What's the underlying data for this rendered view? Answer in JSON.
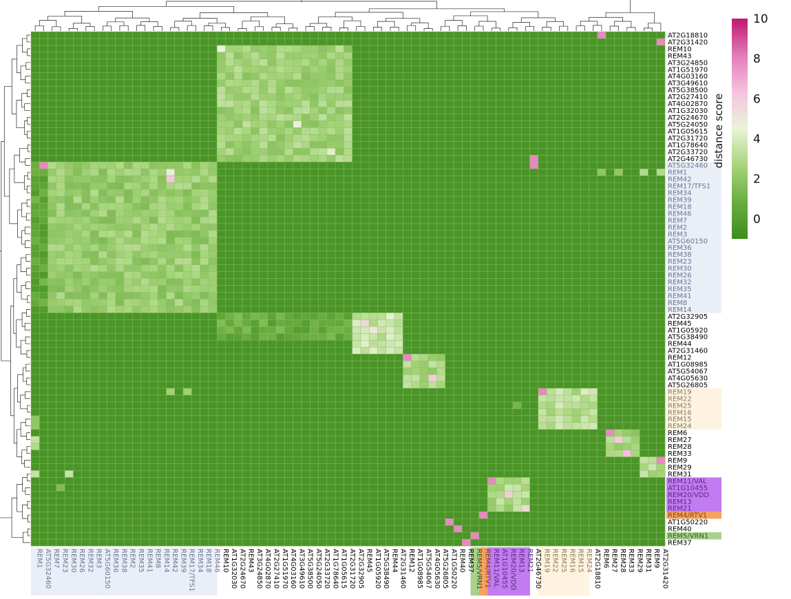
{
  "chart_data": {
    "type": "heatmap",
    "title": "",
    "colorbar": {
      "label": "distance score",
      "ticks": [
        0,
        2,
        4,
        6,
        8,
        10
      ],
      "colors": [
        "#3e8c1e",
        "#6aad3f",
        "#a6d47a",
        "#e9f4d8",
        "#f6c2de",
        "#e27bb7",
        "#c2176f"
      ],
      "range": [
        -1,
        10
      ]
    },
    "clusters": [
      {
        "name": "blue",
        "color": "#e9eef7"
      },
      {
        "name": "yellow",
        "color": "#fdf3e0"
      },
      {
        "name": "purple",
        "color": "#c27bf0"
      },
      {
        "name": "orange",
        "color": "#f4a261"
      },
      {
        "name": "green",
        "color": "#a9d08e"
      }
    ],
    "rows": [
      {
        "label": "AT2G18810",
        "color": "#000000"
      },
      {
        "label": "AT2G31420",
        "color": "#000000"
      },
      {
        "label": "REM10",
        "color": "#000000"
      },
      {
        "label": "REM43",
        "color": "#000000"
      },
      {
        "label": "AT3G24850",
        "color": "#000000"
      },
      {
        "label": "AT1G51970",
        "color": "#000000"
      },
      {
        "label": "AT4G03160",
        "color": "#000000"
      },
      {
        "label": "AT3G49610",
        "color": "#000000"
      },
      {
        "label": "AT5G38500",
        "color": "#000000"
      },
      {
        "label": "AT2G27410",
        "color": "#000000"
      },
      {
        "label": "AT4G02870",
        "color": "#000000"
      },
      {
        "label": "AT1G32030",
        "color": "#000000"
      },
      {
        "label": "AT2G24670",
        "color": "#000000"
      },
      {
        "label": "AT5G24050",
        "color": "#000000"
      },
      {
        "label": "AT1G05615",
        "color": "#000000"
      },
      {
        "label": "AT2G31720",
        "color": "#000000"
      },
      {
        "label": "AT1G78640",
        "color": "#000000"
      },
      {
        "label": "AT2G33720",
        "color": "#000000"
      },
      {
        "label": "AT2G46730",
        "color": "#000000"
      },
      {
        "label": "AT5G32460",
        "color": "#6b7690",
        "bg": "blue"
      },
      {
        "label": "REM1",
        "color": "#6b7690",
        "bg": "blue"
      },
      {
        "label": "REM42",
        "color": "#6b7690",
        "bg": "blue"
      },
      {
        "label": "REM17/TFS1",
        "color": "#6b7690",
        "bg": "blue"
      },
      {
        "label": "REM34",
        "color": "#6b7690",
        "bg": "blue"
      },
      {
        "label": "REM39",
        "color": "#6b7690",
        "bg": "blue"
      },
      {
        "label": "REM18",
        "color": "#6b7690",
        "bg": "blue"
      },
      {
        "label": "REM46",
        "color": "#6b7690",
        "bg": "blue"
      },
      {
        "label": "REM7",
        "color": "#6b7690",
        "bg": "blue"
      },
      {
        "label": "REM2",
        "color": "#6b7690",
        "bg": "blue"
      },
      {
        "label": "REM3",
        "color": "#6b7690",
        "bg": "blue"
      },
      {
        "label": "AT5G60150",
        "color": "#6b7690",
        "bg": "blue"
      },
      {
        "label": "REM36",
        "color": "#6b7690",
        "bg": "blue"
      },
      {
        "label": "REM38",
        "color": "#6b7690",
        "bg": "blue"
      },
      {
        "label": "REM23",
        "color": "#6b7690",
        "bg": "blue"
      },
      {
        "label": "REM30",
        "color": "#6b7690",
        "bg": "blue"
      },
      {
        "label": "REM26",
        "color": "#6b7690",
        "bg": "blue"
      },
      {
        "label": "REM32",
        "color": "#6b7690",
        "bg": "blue"
      },
      {
        "label": "REM35",
        "color": "#6b7690",
        "bg": "blue"
      },
      {
        "label": "REM41",
        "color": "#6b7690",
        "bg": "blue"
      },
      {
        "label": "REM8",
        "color": "#6b7690",
        "bg": "blue"
      },
      {
        "label": "REM14",
        "color": "#6b7690",
        "bg": "blue"
      },
      {
        "label": "AT2G32905",
        "color": "#000000"
      },
      {
        "label": "REM45",
        "color": "#000000"
      },
      {
        "label": "AT1G05920",
        "color": "#000000"
      },
      {
        "label": "AT5G38490",
        "color": "#000000"
      },
      {
        "label": "REM44",
        "color": "#000000"
      },
      {
        "label": "AT2G31460",
        "color": "#000000"
      },
      {
        "label": "REM12",
        "color": "#000000"
      },
      {
        "label": "AT1G08985",
        "color": "#000000"
      },
      {
        "label": "AT5G54067",
        "color": "#000000"
      },
      {
        "label": "AT4G05630",
        "color": "#000000"
      },
      {
        "label": "AT5G26805",
        "color": "#000000"
      },
      {
        "label": "REM19",
        "color": "#8a7a5a",
        "bg": "yellow"
      },
      {
        "label": "REM22",
        "color": "#8a7a5a",
        "bg": "yellow"
      },
      {
        "label": "REM25",
        "color": "#8a7a5a",
        "bg": "yellow"
      },
      {
        "label": "REM16",
        "color": "#8a7a5a",
        "bg": "yellow"
      },
      {
        "label": "REM15",
        "color": "#8a7a5a",
        "bg": "yellow"
      },
      {
        "label": "REM24",
        "color": "#8a7a5a",
        "bg": "yellow"
      },
      {
        "label": "REM6",
        "color": "#000000"
      },
      {
        "label": "REM27",
        "color": "#000000"
      },
      {
        "label": "REM28",
        "color": "#000000"
      },
      {
        "label": "REM33",
        "color": "#000000"
      },
      {
        "label": "REM9",
        "color": "#000000"
      },
      {
        "label": "REM29",
        "color": "#000000"
      },
      {
        "label": "REM31",
        "color": "#000000"
      },
      {
        "label": "REM11/VAL",
        "color": "#5b2b82",
        "bg": "purple"
      },
      {
        "label": "AT1G10455",
        "color": "#5b2b82",
        "bg": "purple"
      },
      {
        "label": "REM20/VDD",
        "color": "#5b2b82",
        "bg": "purple"
      },
      {
        "label": "REM13",
        "color": "#5b2b82",
        "bg": "purple"
      },
      {
        "label": "REM21",
        "color": "#5b2b82",
        "bg": "purple"
      },
      {
        "label": "REM4/RTV1",
        "color": "#8a3d10",
        "bg": "orange"
      },
      {
        "label": "AT1G50220",
        "color": "#000000"
      },
      {
        "label": "REM40",
        "color": "#000000"
      },
      {
        "label": "REM5/VRN1",
        "color": "#2e5e1e",
        "bg": "green"
      },
      {
        "label": "REM37",
        "color": "#000000"
      }
    ],
    "columns": [
      {
        "label": "REM1",
        "color": "#6b7690",
        "bg": "blue"
      },
      {
        "label": "AT5G32460",
        "color": "#6b7690",
        "bg": "blue"
      },
      {
        "label": "REM7",
        "color": "#6b7690",
        "bg": "blue"
      },
      {
        "label": "REM23",
        "color": "#6b7690",
        "bg": "blue"
      },
      {
        "label": "REM30",
        "color": "#6b7690",
        "bg": "blue"
      },
      {
        "label": "REM26",
        "color": "#6b7690",
        "bg": "blue"
      },
      {
        "label": "REM32",
        "color": "#6b7690",
        "bg": "blue"
      },
      {
        "label": "REM3",
        "color": "#6b7690",
        "bg": "blue"
      },
      {
        "label": "AT5G60150",
        "color": "#6b7690",
        "bg": "blue"
      },
      {
        "label": "REM36",
        "color": "#6b7690",
        "bg": "blue"
      },
      {
        "label": "REM38",
        "color": "#6b7690",
        "bg": "blue"
      },
      {
        "label": "REM2",
        "color": "#6b7690",
        "bg": "blue"
      },
      {
        "label": "REM35",
        "color": "#6b7690",
        "bg": "blue"
      },
      {
        "label": "REM41",
        "color": "#6b7690",
        "bg": "blue"
      },
      {
        "label": "REM8",
        "color": "#6b7690",
        "bg": "blue"
      },
      {
        "label": "REM14",
        "color": "#6b7690",
        "bg": "blue"
      },
      {
        "label": "REM42",
        "color": "#6b7690",
        "bg": "blue"
      },
      {
        "label": "REM39",
        "color": "#6b7690",
        "bg": "blue"
      },
      {
        "label": "REM17/TFS1",
        "color": "#6b7690",
        "bg": "blue"
      },
      {
        "label": "REM34",
        "color": "#6b7690",
        "bg": "blue"
      },
      {
        "label": "REM18",
        "color": "#6b7690",
        "bg": "blue"
      },
      {
        "label": "REM46",
        "color": "#6b7690",
        "bg": "blue"
      },
      {
        "label": "REM10",
        "color": "#000000"
      },
      {
        "label": "AT1G32030",
        "color": "#000000"
      },
      {
        "label": "AT2G24670",
        "color": "#000000"
      },
      {
        "label": "REM43",
        "color": "#000000"
      },
      {
        "label": "AT3G24850",
        "color": "#000000"
      },
      {
        "label": "AT4G02870",
        "color": "#000000"
      },
      {
        "label": "AT2G27410",
        "color": "#000000"
      },
      {
        "label": "AT1G51970",
        "color": "#000000"
      },
      {
        "label": "AT4G03160",
        "color": "#000000"
      },
      {
        "label": "AT3G49610",
        "color": "#000000"
      },
      {
        "label": "AT5G38500",
        "color": "#000000"
      },
      {
        "label": "AT5G24050",
        "color": "#000000"
      },
      {
        "label": "AT2G33720",
        "color": "#000000"
      },
      {
        "label": "AT1G78640",
        "color": "#000000"
      },
      {
        "label": "AT1G05615",
        "color": "#000000"
      },
      {
        "label": "AT2G31720",
        "color": "#000000"
      },
      {
        "label": "AT2G32905",
        "color": "#000000"
      },
      {
        "label": "REM45",
        "color": "#000000"
      },
      {
        "label": "AT1G05920",
        "color": "#000000"
      },
      {
        "label": "AT5G38490",
        "color": "#000000"
      },
      {
        "label": "REM44",
        "color": "#000000"
      },
      {
        "label": "AT2G31460",
        "color": "#000000"
      },
      {
        "label": "REM12",
        "color": "#000000"
      },
      {
        "label": "AT1G08985",
        "color": "#000000"
      },
      {
        "label": "AT5G54067",
        "color": "#000000"
      },
      {
        "label": "AT4G05630",
        "color": "#000000"
      },
      {
        "label": "AT5G26805",
        "color": "#000000"
      },
      {
        "label": "AT1G50220",
        "color": "#000000"
      },
      {
        "label": "REM40",
        "color": "#000000"
      },
      {
        "label": "REM37",
        "color": "#000000"
      },
      {
        "label": "REM5/VRN1",
        "color": "#2e5e1e",
        "bg": "green"
      },
      {
        "label": "REM4/RTV1",
        "color": "#8a3d10",
        "bg": "orange"
      },
      {
        "label": "REM11/VAL",
        "color": "#5b2b82",
        "bg": "purple"
      },
      {
        "label": "AT1G10455",
        "color": "#5b2b82",
        "bg": "purple"
      },
      {
        "label": "REM20/VDD",
        "color": "#5b2b82",
        "bg": "purple"
      },
      {
        "label": "REM13",
        "color": "#5b2b82",
        "bg": "purple"
      },
      {
        "label": "REM21",
        "color": "#5b2b82",
        "bg": "purple"
      },
      {
        "label": "AT2G46730",
        "color": "#000000"
      },
      {
        "label": "REM19",
        "color": "#8a7a5a",
        "bg": "yellow"
      },
      {
        "label": "REM22",
        "color": "#8a7a5a",
        "bg": "yellow"
      },
      {
        "label": "REM25",
        "color": "#8a7a5a",
        "bg": "yellow"
      },
      {
        "label": "REM16",
        "color": "#8a7a5a",
        "bg": "yellow"
      },
      {
        "label": "REM15",
        "color": "#8a7a5a",
        "bg": "yellow"
      },
      {
        "label": "REM24",
        "color": "#8a7a5a",
        "bg": "yellow"
      },
      {
        "label": "AT2G18810",
        "color": "#000000"
      },
      {
        "label": "REM6",
        "color": "#000000"
      },
      {
        "label": "REM27",
        "color": "#000000"
      },
      {
        "label": "REM28",
        "color": "#000000"
      },
      {
        "label": "REM33",
        "color": "#000000"
      },
      {
        "label": "REM29",
        "color": "#000000"
      },
      {
        "label": "REM31",
        "color": "#000000"
      },
      {
        "label": "REM9",
        "color": "#000000"
      },
      {
        "label": "AT2G31420",
        "color": "#000000"
      }
    ],
    "baseline_value": -0.5,
    "blocks": [
      {
        "rows": [
          2,
          18
        ],
        "cols": [
          22,
          37
        ],
        "value": 2.6
      },
      {
        "rows": [
          19,
          40
        ],
        "cols": [
          2,
          21
        ],
        "value": 2.3
      },
      {
        "rows": [
          19,
          40
        ],
        "cols": [
          0,
          1
        ],
        "value": 0.5
      },
      {
        "rows": [
          41,
          46
        ],
        "cols": [
          38,
          43
        ],
        "value": 3.6
      },
      {
        "rows": [
          41,
          44
        ],
        "cols": [
          22,
          37
        ],
        "value": 0.8
      },
      {
        "rows": [
          47,
          51
        ],
        "cols": [
          44,
          48
        ],
        "value": 2.8
      },
      {
        "rows": [
          52,
          57
        ],
        "cols": [
          60,
          66
        ],
        "value": 3.3
      },
      {
        "rows": [
          58,
          61
        ],
        "cols": [
          68,
          71
        ],
        "value": 2.6
      },
      {
        "rows": [
          62,
          64
        ],
        "cols": [
          72,
          74
        ],
        "value": 3.0
      },
      {
        "rows": [
          65,
          69
        ],
        "cols": [
          54,
          58
        ],
        "value": 2.9
      }
    ],
    "diagonal_value": 7.8,
    "spots": [
      {
        "row": 0,
        "col": 67,
        "value": 7.8
      },
      {
        "row": 1,
        "col": 74,
        "value": 7.8
      },
      {
        "row": 2,
        "col": 22,
        "value": 4.5
      },
      {
        "row": 13,
        "col": 31,
        "value": 4.6
      },
      {
        "row": 17,
        "col": 35,
        "value": 4.2
      },
      {
        "row": 18,
        "col": 59,
        "value": 7.8
      },
      {
        "row": 19,
        "col": 1,
        "value": 7.8
      },
      {
        "row": 19,
        "col": 59,
        "value": 7.8
      },
      {
        "row": 20,
        "col": 16,
        "value": 4.8
      },
      {
        "row": 21,
        "col": 16,
        "value": 6.2
      },
      {
        "row": 20,
        "col": 67,
        "value": 2.0
      },
      {
        "row": 20,
        "col": 69,
        "value": 2.0
      },
      {
        "row": 20,
        "col": 72,
        "value": 3.0
      },
      {
        "row": 20,
        "col": 74,
        "value": 3.0
      },
      {
        "row": 42,
        "col": 39,
        "value": 5.6
      },
      {
        "row": 43,
        "col": 40,
        "value": 5.0
      },
      {
        "row": 47,
        "col": 44,
        "value": 7.8
      },
      {
        "row": 52,
        "col": 60,
        "value": 7.8
      },
      {
        "row": 50,
        "col": 47,
        "value": 6.0
      },
      {
        "row": 58,
        "col": 68,
        "value": 7.8
      },
      {
        "row": 59,
        "col": 69,
        "value": 6.0
      },
      {
        "row": 61,
        "col": 70,
        "value": 6.4
      },
      {
        "row": 62,
        "col": 74,
        "value": 7.8
      },
      {
        "row": 65,
        "col": 54,
        "value": 7.8
      },
      {
        "row": 67,
        "col": 56,
        "value": 6.0
      },
      {
        "row": 69,
        "col": 58,
        "value": 5.5
      },
      {
        "row": 70,
        "col": 53,
        "value": 7.8
      },
      {
        "row": 71,
        "col": 49,
        "value": 7.8
      },
      {
        "row": 72,
        "col": 50,
        "value": 7.8
      },
      {
        "row": 73,
        "col": 52,
        "value": 7.8
      },
      {
        "row": 74,
        "col": 51,
        "value": 7.8
      },
      {
        "row": 59,
        "col": 0,
        "value": 3.5
      },
      {
        "row": 60,
        "col": 0,
        "value": 3.0
      },
      {
        "row": 64,
        "col": 0,
        "value": 3.5
      },
      {
        "row": 64,
        "col": 4,
        "value": 3.5
      },
      {
        "row": 66,
        "col": 3,
        "value": 1.5
      },
      {
        "row": 52,
        "col": 16,
        "value": 2.5
      },
      {
        "row": 52,
        "col": 18,
        "value": 2.5
      },
      {
        "row": 53,
        "col": 60,
        "value": 3.5
      },
      {
        "row": 54,
        "col": 57,
        "value": 1.2
      },
      {
        "row": 56,
        "col": 0,
        "value": 2.0
      },
      {
        "row": 57,
        "col": 0,
        "value": 2.0
      }
    ],
    "row_dendrogram": "hierarchical clustering tree (left)",
    "col_dendrogram": "hierarchical clustering tree (top)"
  }
}
